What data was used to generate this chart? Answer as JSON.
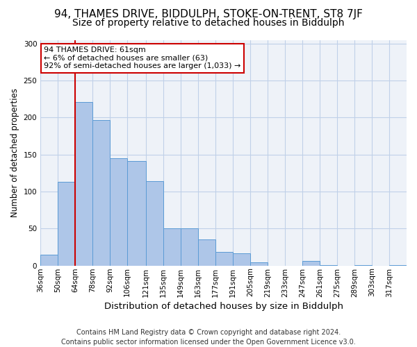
{
  "title1": "94, THAMES DRIVE, BIDDULPH, STOKE-ON-TRENT, ST8 7JF",
  "title2": "Size of property relative to detached houses in Biddulph",
  "xlabel": "Distribution of detached houses by size in Biddulph",
  "ylabel": "Number of detached properties",
  "bin_labels": [
    "36sqm",
    "50sqm",
    "64sqm",
    "78sqm",
    "92sqm",
    "106sqm",
    "121sqm",
    "135sqm",
    "149sqm",
    "163sqm",
    "177sqm",
    "191sqm",
    "205sqm",
    "219sqm",
    "233sqm",
    "247sqm",
    "261sqm",
    "275sqm",
    "289sqm",
    "303sqm",
    "317sqm"
  ],
  "bar_values": [
    15,
    113,
    221,
    197,
    145,
    141,
    114,
    50,
    50,
    35,
    18,
    17,
    4,
    0,
    0,
    6,
    1,
    0,
    1,
    0,
    1
  ],
  "bin_edges": [
    36,
    50,
    64,
    78,
    92,
    106,
    121,
    135,
    149,
    163,
    177,
    191,
    205,
    219,
    233,
    247,
    261,
    275,
    289,
    303,
    317,
    331
  ],
  "bar_color": "#aec6e8",
  "bar_edgecolor": "#5b9bd5",
  "vline_x": 64,
  "vline_color": "#cc0000",
  "ylim": [
    0,
    305
  ],
  "yticks": [
    0,
    50,
    100,
    150,
    200,
    250,
    300
  ],
  "annotation_title": "94 THAMES DRIVE: 61sqm",
  "annotation_line1": "← 6% of detached houses are smaller (63)",
  "annotation_line2": "92% of semi-detached houses are larger (1,033) →",
  "annotation_box_edgecolor": "#cc0000",
  "footer1": "Contains HM Land Registry data © Crown copyright and database right 2024.",
  "footer2": "Contains public sector information licensed under the Open Government Licence v3.0.",
  "background_color": "#eef2f8",
  "title1_fontsize": 11,
  "title2_fontsize": 10,
  "xlabel_fontsize": 9.5,
  "ylabel_fontsize": 8.5,
  "tick_fontsize": 7.5,
  "footer_fontsize": 7.0
}
